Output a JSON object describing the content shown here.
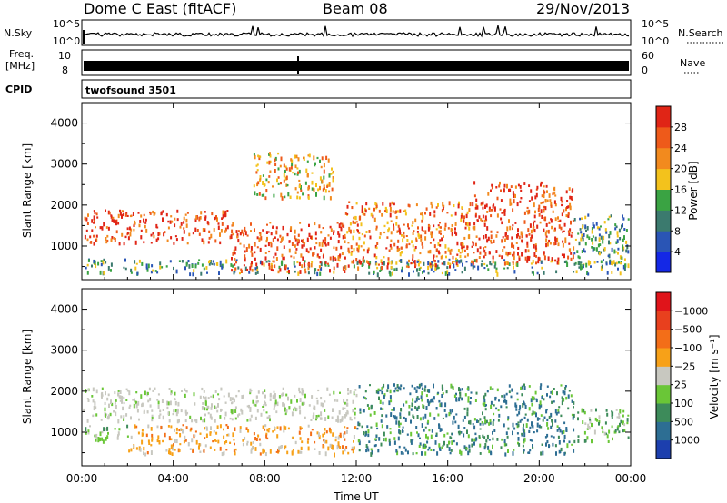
{
  "header": {
    "station": "Dome C East (fitACF)",
    "beam": "Beam 08",
    "date": "29/Nov/2013"
  },
  "strip": {
    "nsky_label": "N.Sky",
    "nsky_ticks": [
      "10^5",
      "10^0"
    ],
    "nsearch_label": "N.Search",
    "nsearch_ticks": [
      "10^5",
      "10^0"
    ],
    "freq_label_1": "Freq.",
    "freq_label_2": "[MHz]",
    "freq_ticks": [
      "10",
      "8"
    ],
    "nave_label": "Nave",
    "nave_ticks": [
      "60",
      "0"
    ],
    "cpid_label": "CPID",
    "cpid_value": "twofsound 3501"
  },
  "chart_data": [
    {
      "type": "heatmap",
      "name": "power-panel",
      "xlabel": "",
      "ylabel": "Slant Range [km]",
      "x_ticks": [
        "00:00",
        "04:00",
        "08:00",
        "12:00",
        "16:00",
        "20:00",
        "00:00"
      ],
      "x_range_hours": [
        0,
        24
      ],
      "y_range_km": [
        180,
        4500
      ],
      "y_ticks": [
        1000,
        2000,
        3000,
        4000
      ],
      "colorbar": {
        "label": "Power [dB]",
        "ticks": [
          4,
          8,
          12,
          16,
          20,
          24,
          28
        ],
        "colors": [
          "#1428e6",
          "#2a55b5",
          "#3b7a6e",
          "#3aa343",
          "#f3c21c",
          "#f28a1e",
          "#ee5a1a",
          "#e02516"
        ]
      },
      "features": [
        {
          "t": [
            0.0,
            24.0
          ],
          "r": [
            350,
            700
          ],
          "level": "low"
        },
        {
          "t": [
            0.0,
            6.5
          ],
          "r": [
            1100,
            1900
          ],
          "level": "high"
        },
        {
          "t": [
            6.5,
            11.5
          ],
          "r": [
            400,
            1600
          ],
          "level": "high"
        },
        {
          "t": [
            7.5,
            11.0
          ],
          "r": [
            2200,
            3300
          ],
          "level": "mid"
        },
        {
          "t": [
            11.5,
            17.0
          ],
          "r": [
            500,
            2100
          ],
          "level": "mid-high"
        },
        {
          "t": [
            17.0,
            21.5
          ],
          "r": [
            600,
            2600
          ],
          "level": "high"
        },
        {
          "t": [
            21.5,
            24.0
          ],
          "r": [
            500,
            1800
          ],
          "level": "low"
        }
      ]
    },
    {
      "type": "heatmap",
      "name": "velocity-panel",
      "xlabel": "Time UT",
      "ylabel": "Slant Range [km]",
      "x_ticks": [
        "00:00",
        "04:00",
        "08:00",
        "12:00",
        "16:00",
        "20:00",
        "00:00"
      ],
      "x_range_hours": [
        0,
        24
      ],
      "y_range_km": [
        180,
        4500
      ],
      "y_ticks": [
        1000,
        2000,
        3000,
        4000
      ],
      "colorbar": {
        "label": "Velocity [m s⁻¹]",
        "ticks": [
          "1000",
          "500",
          "100",
          "25",
          "−25",
          "−100",
          "−500",
          "−1000"
        ],
        "colors": [
          "#1c3fae",
          "#2d6e93",
          "#3d8b5a",
          "#6ac637",
          "#c8c8c0",
          "#f7a118",
          "#f36e18",
          "#e8401e",
          "#e0141a"
        ]
      },
      "features": [
        {
          "t": [
            0.0,
            12.0
          ],
          "r": [
            1300,
            2100
          ],
          "level": "near-zero"
        },
        {
          "t": [
            2.0,
            12.0
          ],
          "r": [
            500,
            1200
          ],
          "level": "negative"
        },
        {
          "t": [
            0.0,
            2.0
          ],
          "r": [
            800,
            1200
          ],
          "level": "positive-small"
        },
        {
          "t": [
            12.0,
            21.5
          ],
          "r": [
            500,
            2200
          ],
          "level": "positive"
        },
        {
          "t": [
            21.5,
            24.0
          ],
          "r": [
            800,
            1600
          ],
          "level": "positive-small"
        }
      ]
    }
  ]
}
